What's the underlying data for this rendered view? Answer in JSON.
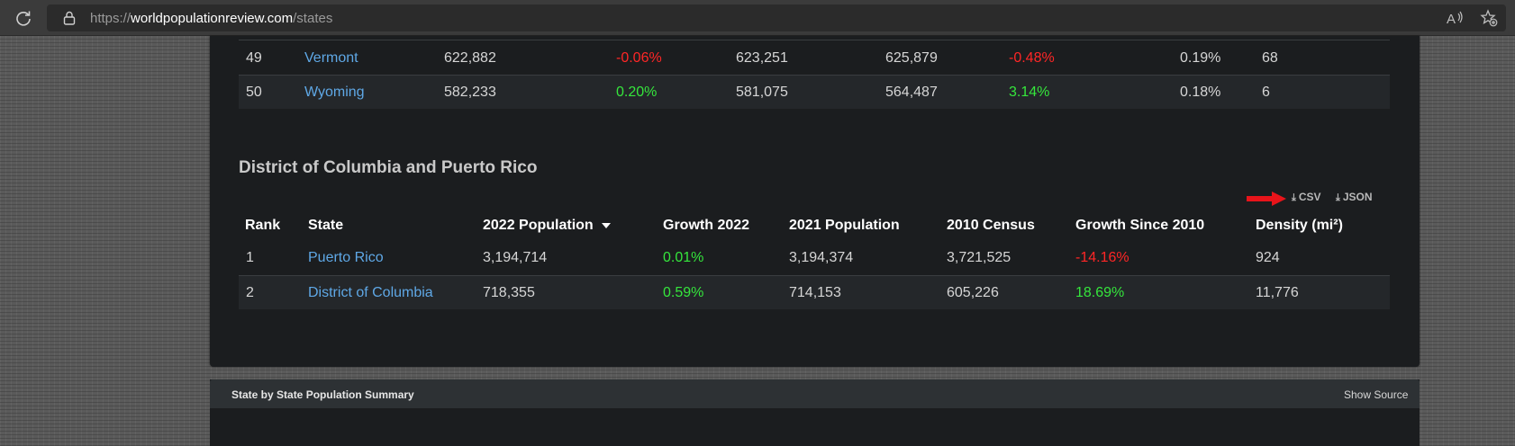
{
  "browser": {
    "url_prefix": "https://",
    "url_host": "worldpopulationreview.com",
    "url_path": "/states",
    "icons": [
      "reload-icon",
      "lock-icon",
      "read-aloud-icon",
      "add-favorite-icon"
    ]
  },
  "upper_table": {
    "rows": [
      {
        "rank": "49",
        "state": "Vermont",
        "pop_2022": "622,882",
        "growth_2022": "-0.06%",
        "growth_2022_sign": "neg",
        "pop_2021": "623,251",
        "census_2010": "625,879",
        "growth_since_2010": "-0.48%",
        "growth_since_2010_sign": "neg",
        "share": "0.19%",
        "density": "68"
      },
      {
        "rank": "50",
        "state": "Wyoming",
        "pop_2022": "582,233",
        "growth_2022": "0.20%",
        "growth_2022_sign": "pos",
        "pop_2021": "581,075",
        "census_2010": "564,487",
        "growth_since_2010": "3.14%",
        "growth_since_2010_sign": "pos",
        "share": "0.18%",
        "density": "6"
      }
    ]
  },
  "dc_section": {
    "title": "District of Columbia and Puerto Rico",
    "export": {
      "csv_label": "CSV",
      "json_label": "JSON"
    },
    "headers": {
      "rank": "Rank",
      "state": "State",
      "pop_2022": "2022 Population",
      "growth_2022": "Growth 2022",
      "pop_2021": "2021 Population",
      "census_2010": "2010 Census",
      "growth_since_2010": "Growth Since 2010",
      "density": "Density (mi²)"
    },
    "rows": [
      {
        "rank": "1",
        "state": "Puerto Rico",
        "pop_2022": "3,194,714",
        "growth_2022": "0.01%",
        "growth_2022_sign": "pos",
        "pop_2021": "3,194,374",
        "census_2010": "3,721,525",
        "growth_since_2010": "-14.16%",
        "growth_since_2010_sign": "neg",
        "density": "924"
      },
      {
        "rank": "2",
        "state": "District of Columbia",
        "pop_2022": "718,355",
        "growth_2022": "0.59%",
        "growth_2022_sign": "pos",
        "pop_2021": "714,153",
        "census_2010": "605,226",
        "growth_since_2010": "18.69%",
        "growth_since_2010_sign": "pos",
        "density": "11,776"
      }
    ]
  },
  "summary_panel": {
    "title": "State by State Population Summary",
    "show_source_label": "Show Source"
  },
  "colors": {
    "link": "#5fa8e6",
    "positive": "#35e63c",
    "negative": "#ff2626",
    "annotation_arrow": "#e8141a"
  }
}
